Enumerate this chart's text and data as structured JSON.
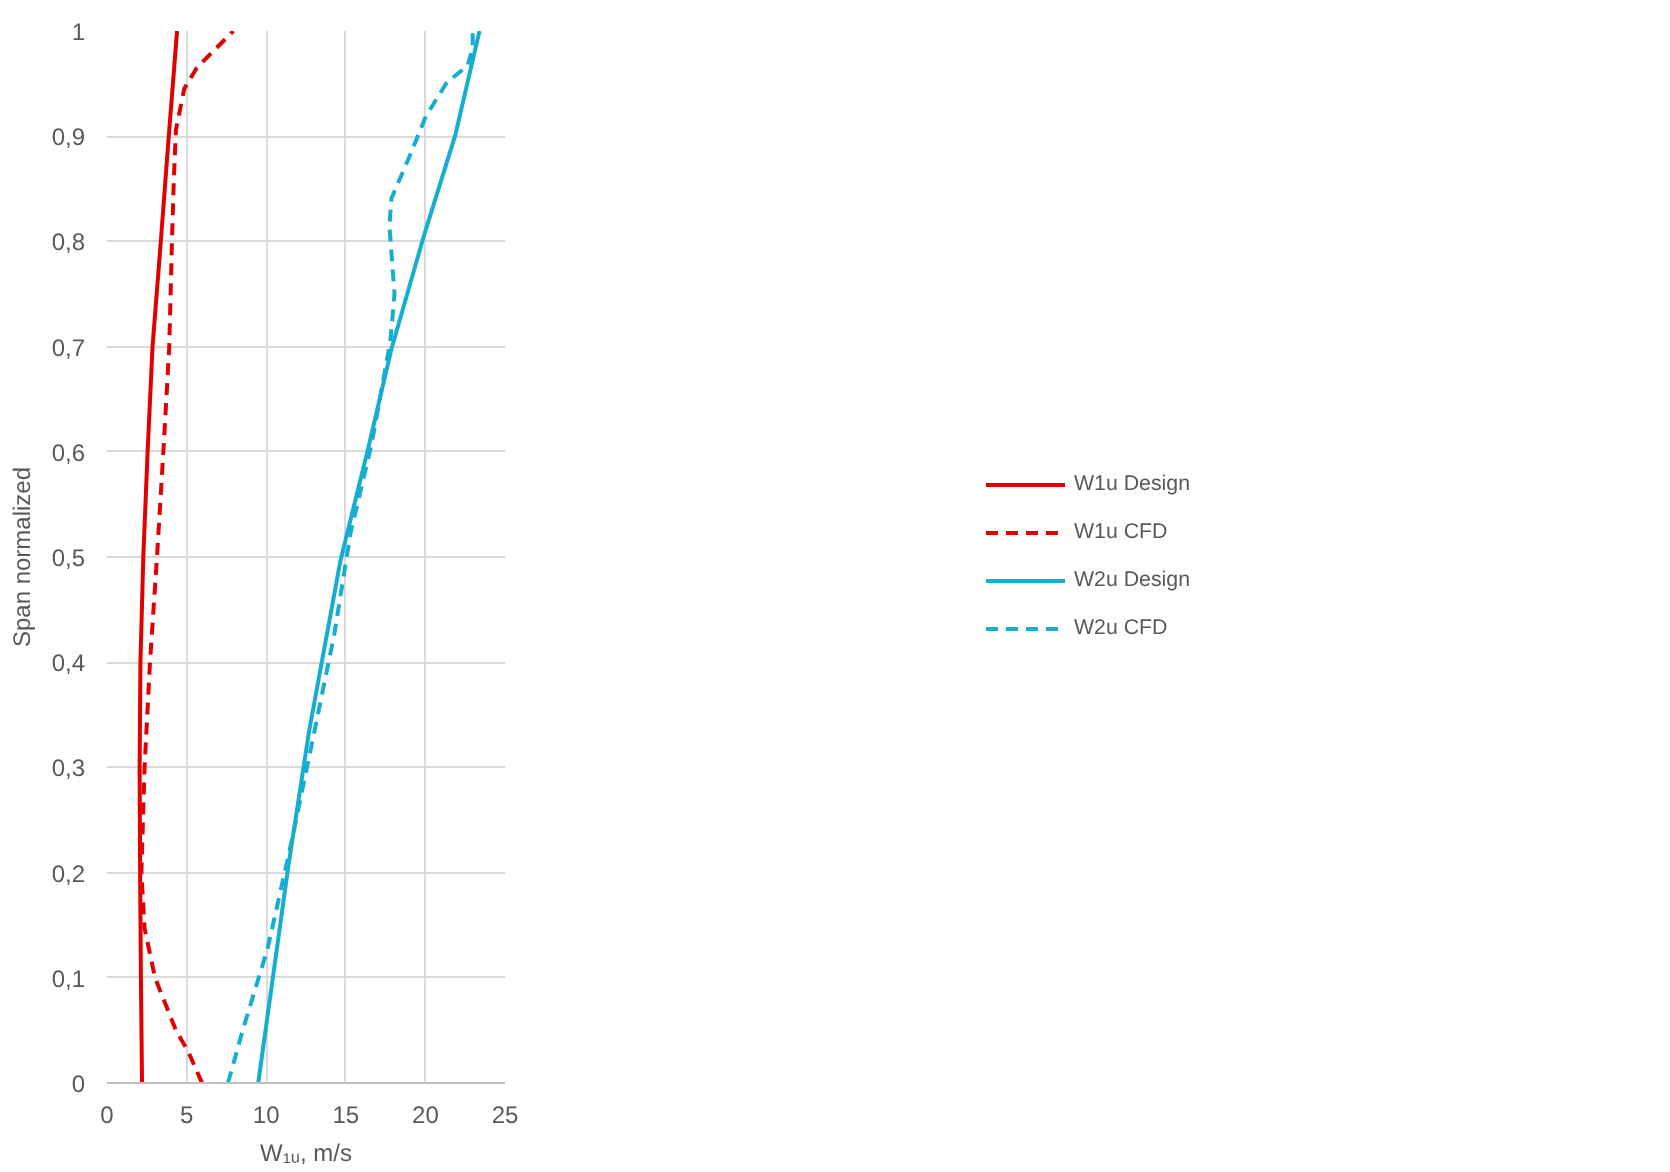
{
  "chart_data": {
    "type": "line",
    "xlabel": "W₁ᵤ, m/s",
    "ylabel": "Span normalized",
    "xlim": [
      0,
      25
    ],
    "xticks": [
      0,
      5,
      10,
      15,
      20,
      25
    ],
    "ylim": [
      0,
      1
    ],
    "yticks": [
      0,
      {
        "value": 0.1,
        "label": "0,1"
      },
      {
        "value": 0.2,
        "label": "0,2"
      },
      {
        "value": 0.3,
        "label": "0,3"
      },
      {
        "value": 0.4,
        "label": "0,4"
      },
      {
        "value": 0.5,
        "label": "0,5"
      },
      {
        "value": 0.6,
        "label": "0,6"
      },
      {
        "value": 0.7,
        "label": "0,7"
      },
      {
        "value": 0.8,
        "label": "0,8"
      },
      {
        "value": 0.9,
        "label": "0,9"
      },
      1
    ],
    "grid": true,
    "legend": "right",
    "marker": "none",
    "series": [
      {
        "name": "W1u Design",
        "color": "#e00000",
        "line_style": "solid",
        "x": [
          2.2,
          2.13,
          2.08,
          2.05,
          2.1,
          2.28,
          2.55,
          2.86,
          3.38,
          3.88,
          4.4
        ],
        "values": [
          0,
          0.1,
          0.2,
          0.3,
          0.4,
          0.5,
          0.6,
          0.7,
          0.8,
          0.9,
          1
        ]
      },
      {
        "name": "W1u CFD",
        "color": "#e00000",
        "line_style": "dashed",
        "x": [
          5.97,
          5.1,
          4.33,
          3.02,
          2.36,
          2.16,
          2.36,
          2.7,
          3.14,
          3.54,
          3.91,
          4.08,
          4.2,
          4.33,
          4.85,
          5.64,
          7.93
        ],
        "values": [
          0,
          0.03,
          0.05,
          0.1,
          0.147,
          0.2,
          0.3,
          0.4,
          0.5,
          0.6,
          0.7,
          0.8,
          0.86,
          0.906,
          0.945,
          0.965,
          1
        ]
      },
      {
        "name": "W2u Design",
        "color": "#16aed0",
        "line_style": "solid",
        "x": [
          9.5,
          11.39,
          12.7,
          14.67,
          16.37,
          17.87,
          19.9,
          21.86,
          23.4
        ],
        "values": [
          0,
          0.206,
          0.335,
          0.497,
          0.601,
          0.698,
          0.805,
          0.9,
          1
        ]
      },
      {
        "name": "W2u CFD",
        "color": "#16aed0",
        "line_style": "dashed",
        "x": [
          7.6,
          8.52,
          10.09,
          11.53,
          12.7,
          14.27,
          15.3,
          16.63,
          17.41,
          17.8,
          18.06,
          17.74,
          17.87,
          18.98,
          20.03,
          21.34,
          22.65,
          22.97,
          22.97
        ],
        "values": [
          0,
          0.05,
          0.128,
          0.225,
          0.31,
          0.426,
          0.523,
          0.608,
          0.673,
          0.705,
          0.75,
          0.815,
          0.841,
          0.88,
          0.919,
          0.951,
          0.967,
          0.984,
          1
        ]
      }
    ]
  }
}
